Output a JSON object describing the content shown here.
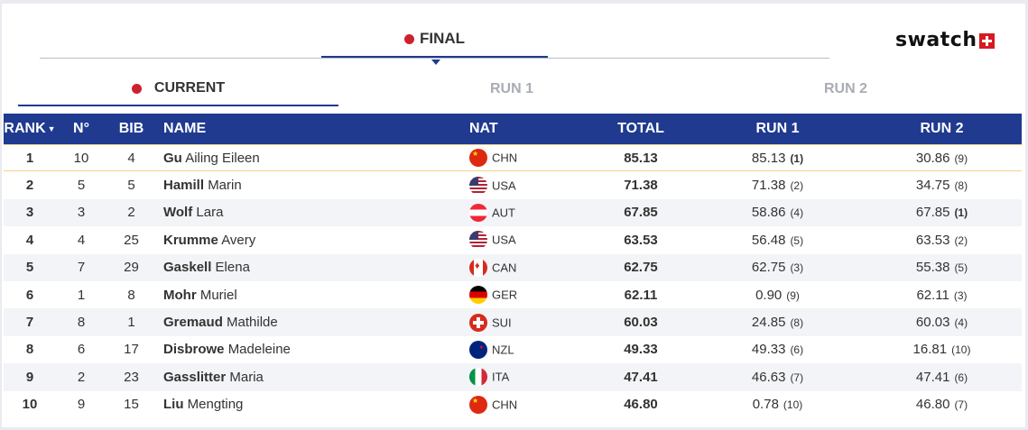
{
  "tabs": {
    "final_label": "FINAL"
  },
  "subtabs": {
    "current": "CURRENT",
    "run1": "RUN 1",
    "run2": "RUN 2"
  },
  "logo": {
    "text": "swatch"
  },
  "colors": {
    "header_bg": "#1f3a8f",
    "live_dot": "#d0202e",
    "highlight_border": "#f2d38a"
  },
  "table": {
    "headers": {
      "rank": "RANK",
      "no": "N°",
      "bib": "BIB",
      "name": "NAME",
      "nat": "NAT",
      "total": "TOTAL",
      "run1": "RUN 1",
      "run2": "RUN 2"
    },
    "rows": [
      {
        "rank": "1",
        "no": "10",
        "bib": "4",
        "last": "Gu",
        "first": "Ailing Eileen",
        "flag": "chn",
        "nat": "CHN",
        "total": "85.13",
        "run1": "85.13",
        "run1_pos": "(1)",
        "run1_best": true,
        "run2": "30.86",
        "run2_pos": "(9)",
        "run2_best": false
      },
      {
        "rank": "2",
        "no": "5",
        "bib": "5",
        "last": "Hamill",
        "first": "Marin",
        "flag": "usa",
        "nat": "USA",
        "total": "71.38",
        "run1": "71.38",
        "run1_pos": "(2)",
        "run1_best": false,
        "run2": "34.75",
        "run2_pos": "(8)",
        "run2_best": false
      },
      {
        "rank": "3",
        "no": "3",
        "bib": "2",
        "last": "Wolf",
        "first": "Lara",
        "flag": "aut",
        "nat": "AUT",
        "total": "67.85",
        "run1": "58.86",
        "run1_pos": "(4)",
        "run1_best": false,
        "run2": "67.85",
        "run2_pos": "(1)",
        "run2_best": true
      },
      {
        "rank": "4",
        "no": "4",
        "bib": "25",
        "last": "Krumme",
        "first": "Avery",
        "flag": "usa",
        "nat": "USA",
        "total": "63.53",
        "run1": "56.48",
        "run1_pos": "(5)",
        "run1_best": false,
        "run2": "63.53",
        "run2_pos": "(2)",
        "run2_best": false
      },
      {
        "rank": "5",
        "no": "7",
        "bib": "29",
        "last": "Gaskell",
        "first": "Elena",
        "flag": "can",
        "nat": "CAN",
        "total": "62.75",
        "run1": "62.75",
        "run1_pos": "(3)",
        "run1_best": false,
        "run2": "55.38",
        "run2_pos": "(5)",
        "run2_best": false
      },
      {
        "rank": "6",
        "no": "1",
        "bib": "8",
        "last": "Mohr",
        "first": "Muriel",
        "flag": "ger",
        "nat": "GER",
        "total": "62.11",
        "run1": "0.90",
        "run1_pos": "(9)",
        "run1_best": false,
        "run2": "62.11",
        "run2_pos": "(3)",
        "run2_best": false
      },
      {
        "rank": "7",
        "no": "8",
        "bib": "1",
        "last": "Gremaud",
        "first": "Mathilde",
        "flag": "sui",
        "nat": "SUI",
        "total": "60.03",
        "run1": "24.85",
        "run1_pos": "(8)",
        "run1_best": false,
        "run2": "60.03",
        "run2_pos": "(4)",
        "run2_best": false
      },
      {
        "rank": "8",
        "no": "6",
        "bib": "17",
        "last": "Disbrowe",
        "first": "Madeleine",
        "flag": "nzl",
        "nat": "NZL",
        "total": "49.33",
        "run1": "49.33",
        "run1_pos": "(6)",
        "run1_best": false,
        "run2": "16.81",
        "run2_pos": "(10)",
        "run2_best": false
      },
      {
        "rank": "9",
        "no": "2",
        "bib": "23",
        "last": "Gasslitter",
        "first": "Maria",
        "flag": "ita",
        "nat": "ITA",
        "total": "47.41",
        "run1": "46.63",
        "run1_pos": "(7)",
        "run1_best": false,
        "run2": "47.41",
        "run2_pos": "(6)",
        "run2_best": false
      },
      {
        "rank": "10",
        "no": "9",
        "bib": "15",
        "last": "Liu",
        "first": "Mengting",
        "flag": "chn",
        "nat": "CHN",
        "total": "46.80",
        "run1": "0.78",
        "run1_pos": "(10)",
        "run1_best": false,
        "run2": "46.80",
        "run2_pos": "(7)",
        "run2_best": false
      }
    ]
  }
}
